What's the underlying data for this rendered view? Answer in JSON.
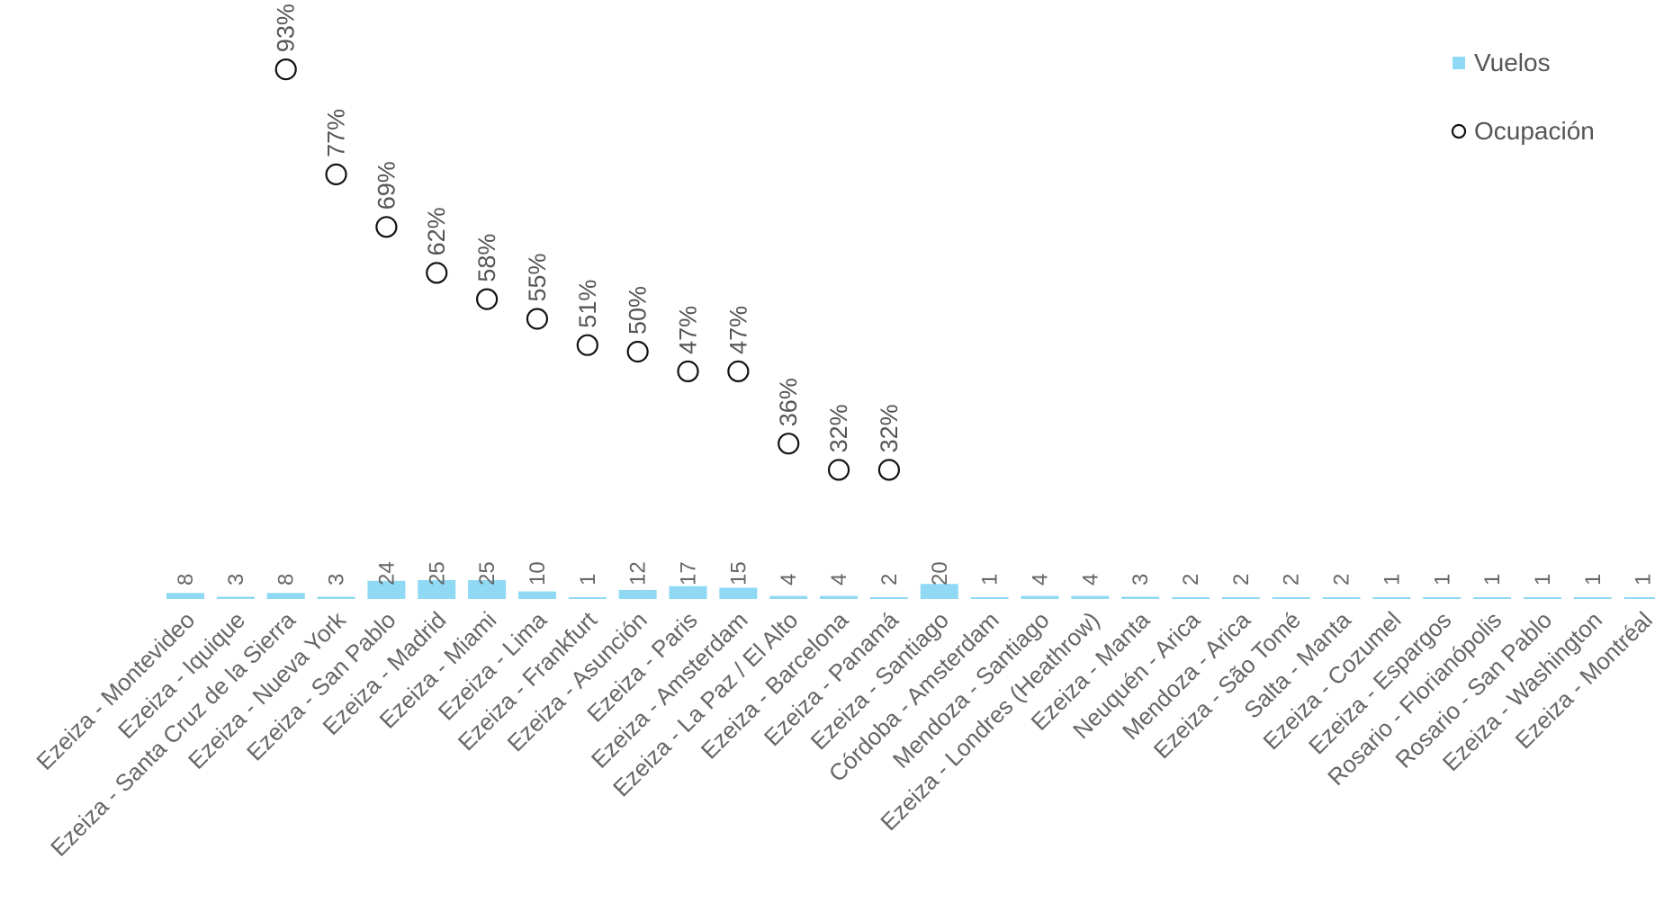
{
  "chart_data": {
    "type": "bar",
    "title": "",
    "xlabel": "",
    "ylabel": "",
    "grid": false,
    "legend_position": "top-right",
    "categories": [
      "Ezeiza - Montevideo",
      "Ezeiza - Iquique",
      "Ezeiza - Santa Cruz de la Sierra",
      "Ezeiza - Nueva York",
      "Ezeiza - San Pablo",
      "Ezeiza - Madrid",
      "Ezeiza - Miami",
      "Ezeiza - Lima",
      "Ezeiza - Frankfurt",
      "Ezeiza - Asunción",
      "Ezeiza - Paris",
      "Ezeiza - Amsterdam",
      "Ezeiza - La Paz / El Alto",
      "Ezeiza - Barcelona",
      "Ezeiza - Panamá",
      "Ezeiza - Santiago",
      "Córdoba - Amsterdam",
      "Mendoza - Santiago",
      "Ezeiza - Londres (Heathrow)",
      "Ezeiza - Manta",
      "Neuquén - Arica",
      "Mendoza - Arica",
      "Ezeiza - São Tomé",
      "Salta - Manta",
      "Ezeiza - Cozumel",
      "Ezeiza - Espargos",
      "Rosario - Florianópolis",
      "Rosario - San Pablo",
      "Ezeiza - Washington",
      "Ezeiza - Montréal"
    ],
    "series": [
      {
        "name": "Vuelos",
        "type": "bar",
        "color": "#8fd9f4",
        "values": [
          8,
          3,
          8,
          3,
          24,
          25,
          25,
          10,
          1,
          12,
          17,
          15,
          4,
          4,
          2,
          20,
          1,
          4,
          4,
          3,
          2,
          2,
          2,
          2,
          1,
          1,
          1,
          1,
          1,
          1
        ],
        "labels": [
          "8",
          "3",
          "8",
          "3",
          "24",
          "25",
          "25",
          "10",
          "1",
          "12",
          "17",
          "15",
          "4",
          "4",
          "2",
          "20",
          "1",
          "4",
          "4",
          "3",
          "2",
          "2",
          "2",
          "2",
          "1",
          "1",
          "1",
          "1",
          "1",
          "1"
        ]
      },
      {
        "name": "Ocupación",
        "type": "scatter",
        "marker": "open-circle",
        "color": "#111111",
        "values": [
          null,
          null,
          93,
          77,
          69,
          62,
          58,
          55,
          51,
          50,
          47,
          47,
          36,
          32,
          32,
          null,
          null,
          null,
          null,
          null,
          null,
          null,
          null,
          null,
          null,
          null,
          null,
          null,
          null,
          null
        ],
        "labels": [
          null,
          null,
          "93%",
          "77%",
          "69%",
          "62%",
          "58%",
          "55%",
          "51%",
          "50%",
          "47%",
          "47%",
          "36%",
          "32%",
          "32%",
          null,
          null,
          null,
          null,
          null,
          null,
          null,
          null,
          null,
          null,
          null,
          null,
          null,
          null,
          null
        ]
      }
    ]
  },
  "legend": {
    "vuelos": "Vuelos",
    "ocupacion": "Ocupación"
  },
  "colors": {
    "bar": "#8fd9f4",
    "marker": "#111111",
    "text": "#666666"
  }
}
